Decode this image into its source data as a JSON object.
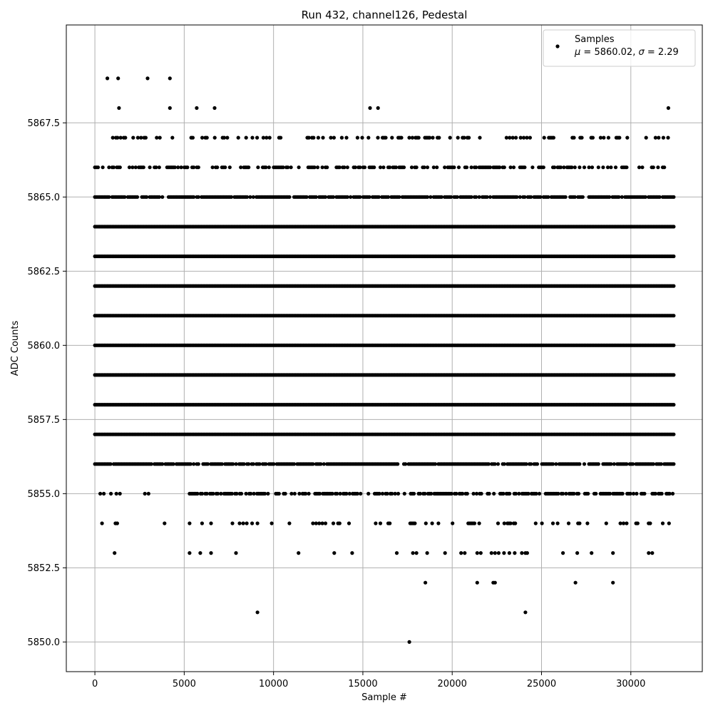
{
  "chart_data": {
    "type": "scatter",
    "title": "Run 432, channel126, Pedestal",
    "xlabel": "Sample #",
    "ylabel": "ADC Counts",
    "xlim": [
      -1600,
      34000
    ],
    "ylim": [
      5849.0,
      5870.8
    ],
    "grid": true,
    "legend": {
      "placement": "top-right",
      "series_label": "Samples",
      "stats_label_parts": [
        "μ",
        " = 5860.02, ",
        "σ",
        " = 2.29"
      ]
    },
    "marker": {
      "shape": "circle",
      "color": "#000000"
    },
    "x_ticks": [
      {
        "value": 0,
        "label": "0"
      },
      {
        "value": 5000,
        "label": "5000"
      },
      {
        "value": 10000,
        "label": "10000"
      },
      {
        "value": 15000,
        "label": "15000"
      },
      {
        "value": 20000,
        "label": "20000"
      },
      {
        "value": 25000,
        "label": "25000"
      },
      {
        "value": 30000,
        "label": "30000"
      }
    ],
    "y_ticks": [
      {
        "value": 5850.0,
        "label": "5850.0"
      },
      {
        "value": 5852.5,
        "label": "5852.5"
      },
      {
        "value": 5855.0,
        "label": "5855.0"
      },
      {
        "value": 5857.5,
        "label": "5857.5"
      },
      {
        "value": 5860.0,
        "label": "5860.0"
      },
      {
        "value": 5862.5,
        "label": "5862.5"
      },
      {
        "value": 5865.0,
        "label": "5865.0"
      },
      {
        "value": 5867.5,
        "label": "5867.5"
      }
    ],
    "series": [
      {
        "name": "Samples",
        "sample_count": 32400,
        "mean": 5860.02,
        "std": 2.29,
        "levels": [
          {
            "y": 5869,
            "x": [
              700,
              1300,
              2950,
              4200
            ]
          },
          {
            "y": 5868,
            "x": [
              1350,
              4200,
              5700,
              6700,
              15400,
              15850,
              32100
            ]
          },
          {
            "y": 5867,
            "x_range": [
              300,
              32200
            ],
            "density": 0.28
          },
          {
            "y": 5866,
            "x_range": [
              0,
              32000
            ],
            "density": 0.45
          },
          {
            "y": 5865,
            "x_range": [
              0,
              32400
            ],
            "density": 0.85
          },
          {
            "y": 5864,
            "x_range": [
              0,
              32400
            ],
            "density": 1.0
          },
          {
            "y": 5863,
            "x_range": [
              0,
              32400
            ],
            "density": 1.0
          },
          {
            "y": 5862,
            "x_range": [
              0,
              32400
            ],
            "density": 1.0
          },
          {
            "y": 5861,
            "x_range": [
              0,
              32400
            ],
            "density": 1.0
          },
          {
            "y": 5860,
            "x_range": [
              0,
              32400
            ],
            "density": 1.0
          },
          {
            "y": 5859,
            "x_range": [
              0,
              32400
            ],
            "density": 1.0
          },
          {
            "y": 5858,
            "x_range": [
              0,
              32400
            ],
            "density": 1.0
          },
          {
            "y": 5857,
            "x_range": [
              0,
              32400
            ],
            "density": 1.0
          },
          {
            "y": 5856,
            "x_range": [
              0,
              32400
            ],
            "density": 0.85
          },
          {
            "y": 5855,
            "x_range": [
              5300,
              32400
            ],
            "density": 0.6
          },
          {
            "y": 5855,
            "x": [
              300,
              500,
              900,
              1200,
              1400,
              2800,
              3000
            ]
          },
          {
            "y": 5854,
            "x_range": [
              10800,
              32400
            ],
            "density": 0.22
          },
          {
            "y": 5854,
            "x": [
              400,
              1150,
              1250,
              3900,
              5300,
              6000,
              6500,
              7700,
              8100,
              8300,
              8500,
              8800,
              9100,
              9900
            ]
          },
          {
            "y": 5853,
            "x": [
              1100,
              5300,
              5900,
              6500,
              7900,
              11400,
              13400,
              14400,
              16900,
              17800,
              18000,
              18600,
              19600,
              20500,
              20700,
              21400,
              21600,
              22200,
              22400,
              22600,
              22900,
              23200,
              23500,
              23900,
              24100,
              24200,
              26200,
              27000,
              27800,
              29000,
              31000,
              31200
            ]
          },
          {
            "y": 5852,
            "x": [
              18500,
              21400,
              22300,
              22400,
              26900,
              29000
            ]
          },
          {
            "y": 5851,
            "x": [
              9100,
              24100
            ]
          },
          {
            "y": 5850,
            "x": [
              17600
            ]
          }
        ]
      }
    ]
  }
}
